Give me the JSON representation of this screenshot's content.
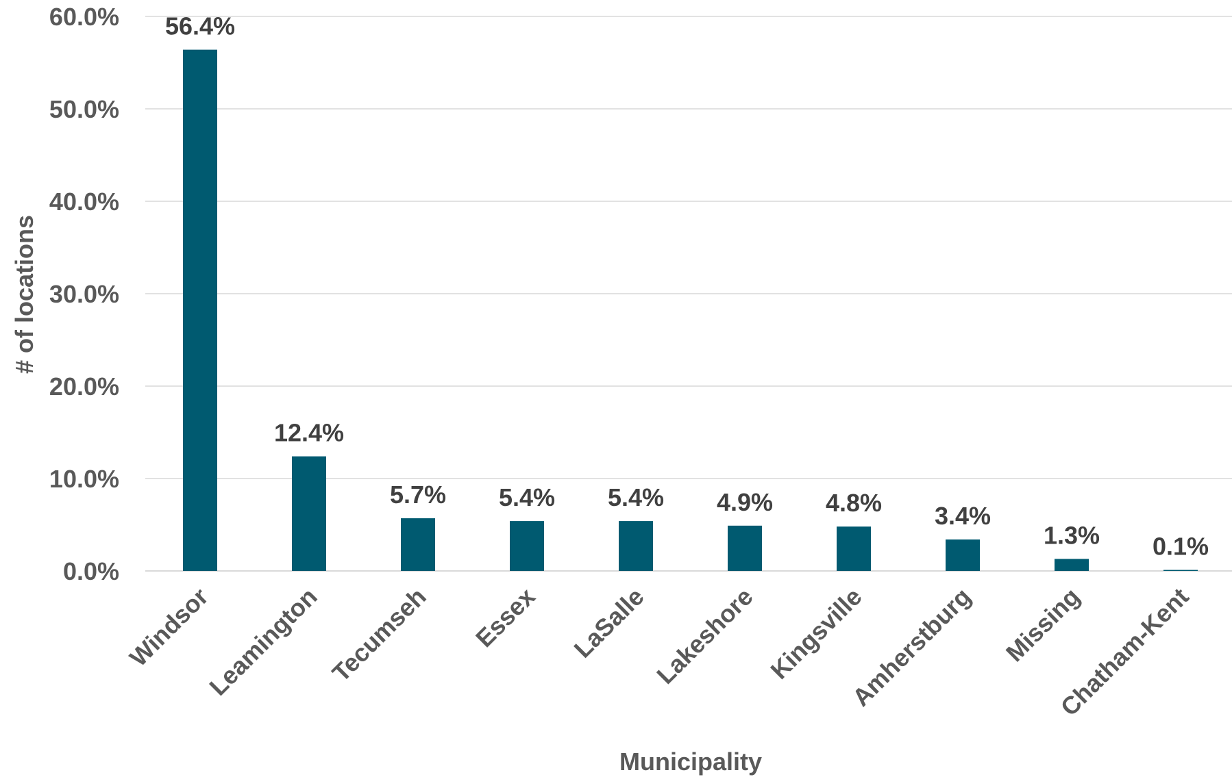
{
  "chart_data": {
    "type": "bar",
    "categories": [
      "Windsor",
      "Leamington",
      "Tecumseh",
      "Essex",
      "LaSalle",
      "Lakeshore",
      "Kingsville",
      "Amherstburg",
      "Missing",
      "Chatham-Kent"
    ],
    "values": [
      56.4,
      12.4,
      5.7,
      5.4,
      5.4,
      4.9,
      4.8,
      3.4,
      1.3,
      0.1
    ],
    "data_labels": [
      "56.4%",
      "12.4%",
      "5.7%",
      "5.4%",
      "5.4%",
      "4.9%",
      "4.8%",
      "3.4%",
      "1.3%",
      "0.1%"
    ],
    "title": "",
    "xlabel": "Municipality",
    "ylabel": "# of locations",
    "ylim": [
      0,
      60
    ],
    "yticks": [
      0,
      10,
      20,
      30,
      40,
      50,
      60
    ],
    "ytick_labels": [
      "0.0%",
      "10.0%",
      "20.0%",
      "30.0%",
      "40.0%",
      "50.0%",
      "60.0%"
    ],
    "grid": true,
    "legend": "none",
    "bar_color": "#005a70"
  }
}
